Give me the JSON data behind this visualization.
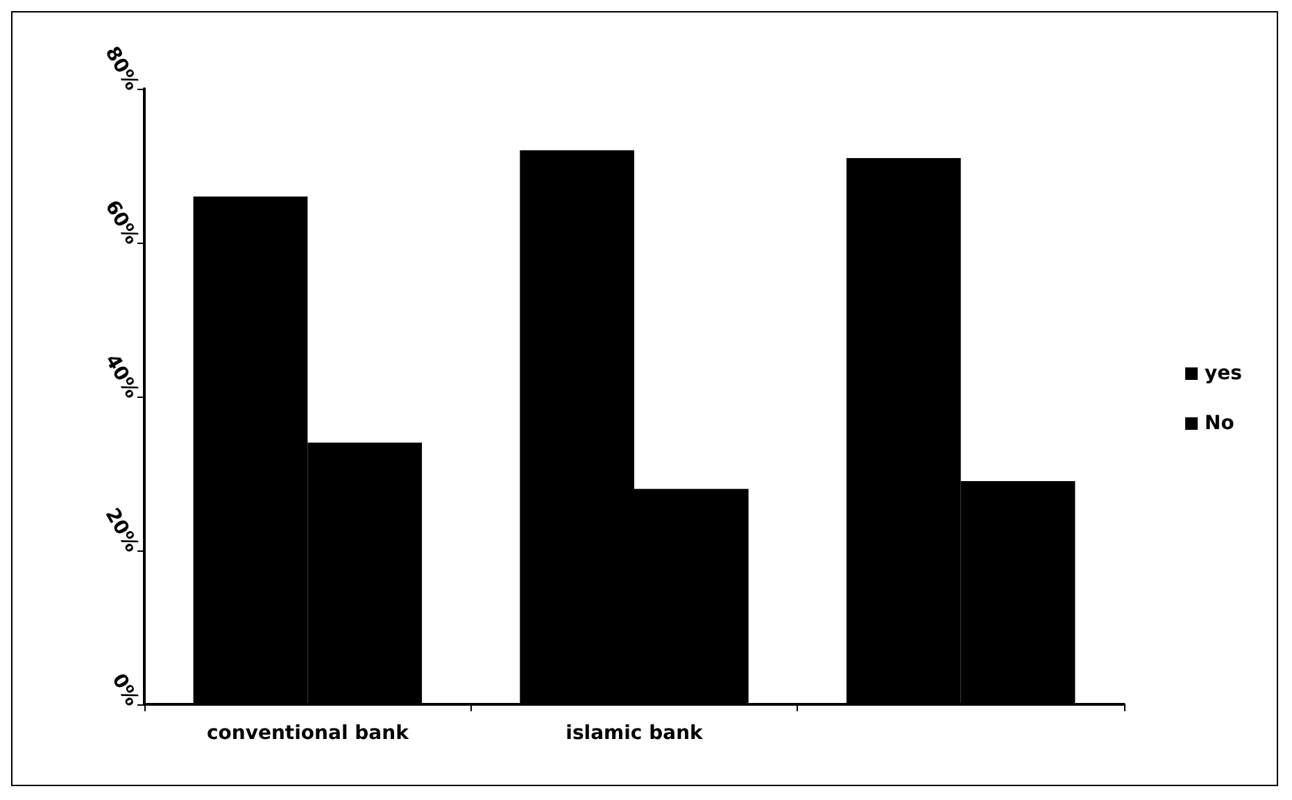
{
  "chart_data": {
    "type": "bar",
    "categories": [
      "conventional bank",
      "islamic bank",
      null
    ],
    "series": [
      {
        "name": "yes",
        "color": "#000000",
        "values": [
          66,
          72,
          71
        ]
      },
      {
        "name": "No",
        "color": "#000000",
        "values": [
          34,
          28,
          29
        ]
      }
    ],
    "ylim": [
      0,
      80
    ],
    "yticks": [
      {
        "value": 0,
        "label": "0%"
      },
      {
        "value": 20,
        "label": "20%"
      },
      {
        "value": 40,
        "label": "40%"
      },
      {
        "value": 60,
        "label": "60%"
      },
      {
        "value": 80,
        "label": "80%"
      }
    ],
    "legend": "right",
    "grid": false
  }
}
